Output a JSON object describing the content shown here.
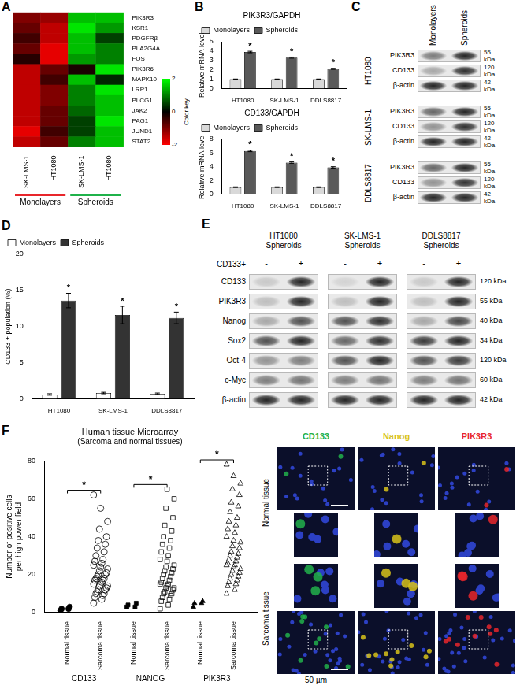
{
  "chart_data": [
    {
      "panel": "A",
      "type": "heatmap",
      "rows": [
        "PIK3R3",
        "KSR1",
        "PDGFRβ",
        "PLA2G4A",
        "FOS",
        "PIK3R6",
        "MAPK10",
        "LRP1",
        "PLCG1",
        "JAK2",
        "PAG1",
        "JUND1",
        "STAT2"
      ],
      "columns": [
        "SK-LMS-1",
        "HT1080",
        "SK-LMS-1",
        "HT1080"
      ],
      "column_groups": [
        "Monolayers",
        "Monolayers",
        "Spheroids",
        "Spheroids"
      ],
      "group_colors": {
        "Monolayers": "#e8262b",
        "Spheroids": "#1fb24a"
      },
      "cells": [
        [
          -1.0,
          -1.2,
          1.5,
          1.5
        ],
        [
          -0.8,
          -1.5,
          1.8,
          1.2
        ],
        [
          -0.5,
          -1.5,
          1.5,
          0.5
        ],
        [
          -0.8,
          -1.8,
          1.5,
          1.0
        ],
        [
          -0.3,
          -1.8,
          1.2,
          1.0
        ],
        [
          -1.5,
          -0.8,
          -0.2,
          1.8
        ],
        [
          -1.5,
          -0.5,
          1.5,
          0.3
        ],
        [
          -1.5,
          -1.0,
          1.0,
          1.8
        ],
        [
          -1.5,
          -1.0,
          1.0,
          1.5
        ],
        [
          -1.5,
          -0.8,
          0.8,
          1.5
        ],
        [
          -1.5,
          -0.8,
          0.5,
          1.8
        ],
        [
          -1.8,
          -0.5,
          0.5,
          1.5
        ],
        [
          -1.5,
          -0.8,
          1.0,
          1.5
        ]
      ],
      "colorbar": {
        "label": "Color key",
        "range": [
          -2,
          2
        ],
        "ticks": [
          -2,
          0,
          2
        ],
        "colors": [
          "#ff0000",
          "#000000",
          "#00ff00"
        ]
      }
    },
    {
      "panel": "B",
      "type": "bar",
      "title": "PIK3R3/GAPDH",
      "ylabel": "Relative mRNA level",
      "categories": [
        "HT1080",
        "SK-LMS-1",
        "DDLS8817"
      ],
      "series": [
        {
          "name": "Monolayers",
          "color": "#d9d9d9",
          "values": [
            1,
            1,
            1
          ],
          "errors": [
            0.02,
            0.02,
            0.02
          ]
        },
        {
          "name": "Spheroids",
          "color": "#595959",
          "values": [
            3.9,
            3.3,
            2.1
          ],
          "errors": [
            0.08,
            0.06,
            0.06
          ],
          "annotations": [
            "*",
            "*",
            "*"
          ]
        }
      ],
      "ylim": [
        0,
        5
      ],
      "yticks": [
        0,
        1,
        2,
        3,
        4,
        5
      ],
      "legend": "top-left",
      "grid": false
    },
    {
      "panel": "B",
      "type": "bar",
      "title": "CD133/GAPDH",
      "ylabel": "Relative mRNA level",
      "categories": [
        "HT1080",
        "SK-LMS-1",
        "DDLS8817"
      ],
      "series": [
        {
          "name": "Monolayers",
          "color": "#d9d9d9",
          "values": [
            1,
            1,
            1
          ],
          "errors": [
            0.05,
            0.05,
            0.05
          ]
        },
        {
          "name": "Spheroids",
          "color": "#595959",
          "values": [
            6.3,
            4.6,
            3.9
          ],
          "errors": [
            0.1,
            0.1,
            0.1
          ],
          "annotations": [
            "*",
            "*",
            "*"
          ]
        }
      ],
      "ylim": [
        0,
        8
      ],
      "yticks": [
        0,
        2,
        4,
        6,
        8
      ],
      "legend": "top-left",
      "grid": false
    },
    {
      "panel": "D",
      "type": "bar",
      "ylabel": "CD133 + population (%)",
      "categories": [
        "HT1080",
        "SK-LMS-1",
        "DDLS8817"
      ],
      "series": [
        {
          "name": "Monolayers",
          "color": "#ffffff",
          "values": [
            0.6,
            0.8,
            0.7
          ],
          "errors": [
            0.1,
            0.1,
            0.1
          ]
        },
        {
          "name": "Spheroids",
          "color": "#333333",
          "values": [
            13.6,
            11.6,
            11.2
          ],
          "errors": [
            1.0,
            1.2,
            0.8
          ],
          "annotations": [
            "*",
            "*",
            "*"
          ]
        }
      ],
      "ylim": [
        0,
        20
      ],
      "yticks": [
        0,
        5,
        10,
        15,
        20
      ],
      "legend": "top-left",
      "grid": false
    },
    {
      "panel": "F",
      "type": "scatter",
      "title": "Human tissue Microarray",
      "subtitle": "(Sarcoma and normal tissues)",
      "ylabel": [
        "Number of positive cells",
        "per high power field"
      ],
      "categories": [
        "Normal tissue",
        "Sarcoma tissue"
      ],
      "groups": [
        {
          "name": "CD133",
          "marker": "circle",
          "significance": "*",
          "values": [
            [
              1,
              2,
              2,
              3
            ],
            [
              5,
              7,
              8,
              9,
              10,
              10,
              11,
              12,
              12,
              13,
              14,
              14,
              15,
              15,
              16,
              17,
              17,
              18,
              18,
              19,
              20,
              20,
              21,
              22,
              23,
              24,
              25,
              26,
              27,
              28,
              30,
              32,
              34,
              36,
              38,
              40,
              44,
              48,
              55,
              62
            ]
          ]
        },
        {
          "name": "NANOG",
          "marker": "square",
          "significance": "*",
          "values": [
            [
              3,
              3,
              4,
              5
            ],
            [
              2,
              4,
              6,
              7,
              8,
              9,
              10,
              10,
              11,
              12,
              13,
              13,
              14,
              15,
              15,
              16,
              17,
              18,
              19,
              20,
              21,
              22,
              23,
              24,
              25,
              27,
              28,
              30,
              32,
              34,
              36,
              38,
              40,
              43,
              46,
              50,
              55,
              60,
              65
            ]
          ]
        },
        {
          "name": "PIK3R3",
          "marker": "triangle",
          "significance": "*",
          "values": [
            [
              3,
              5,
              5,
              6
            ],
            [
              10,
              12,
              14,
              15,
              16,
              17,
              18,
              19,
              20,
              21,
              22,
              23,
              24,
              25,
              25,
              26,
              27,
              28,
              29,
              30,
              31,
              32,
              34,
              35,
              37,
              38,
              40,
              42,
              44,
              46,
              48,
              50,
              53,
              56,
              58,
              62,
              65,
              68,
              72,
              78
            ]
          ]
        }
      ],
      "ylim": [
        0,
        80
      ],
      "yticks": [
        0,
        20,
        40,
        60,
        80
      ],
      "grid": false
    }
  ],
  "blots": [
    {
      "panel": "C",
      "columns": [
        "Monolayers",
        "Spheroids"
      ],
      "proteins": [
        "PIK3R3",
        "CD133",
        "β-actin"
      ],
      "sizes": [
        "55 kDa",
        "120 kDa",
        "42 kDa"
      ],
      "groups": [
        {
          "name": "HT1080",
          "intensity": [
            [
              0.5,
              0.9
            ],
            [
              0.3,
              0.85
            ],
            [
              0.9,
              0.9
            ]
          ]
        },
        {
          "name": "SK-LMS-1",
          "intensity": [
            [
              0.6,
              0.9
            ],
            [
              0.4,
              0.85
            ],
            [
              0.9,
              0.9
            ]
          ]
        },
        {
          "name": "DDLS8817",
          "intensity": [
            [
              0.6,
              0.9
            ],
            [
              0.4,
              0.85
            ],
            [
              0.9,
              0.9
            ]
          ]
        }
      ]
    },
    {
      "panel": "E",
      "header": "CD133+",
      "columns": [
        "-",
        "+"
      ],
      "proteins": [
        "CD133",
        "PIK3R3",
        "Nanog",
        "Sox2",
        "Oct-4",
        "c-Myc",
        "β-actin"
      ],
      "sizes": [
        "120 kDa",
        "55 kDa",
        "40 kDa",
        "34 kDa",
        "120 kDa",
        "60 kDa",
        "42 kDa"
      ],
      "groups": [
        {
          "name": "HT1080 Spheroids",
          "intensity": [
            [
              0.15,
              0.9
            ],
            [
              0.2,
              0.9
            ],
            [
              0.3,
              0.7
            ],
            [
              0.7,
              0.9
            ],
            [
              0.4,
              0.5
            ],
            [
              0.5,
              0.55
            ],
            [
              0.9,
              0.9
            ]
          ]
        },
        {
          "name": "SK-LMS-1 Spheroids",
          "intensity": [
            [
              0.1,
              0.9
            ],
            [
              0.2,
              0.9
            ],
            [
              0.7,
              0.85
            ],
            [
              0.6,
              0.85
            ],
            [
              0.7,
              0.9
            ],
            [
              0.5,
              0.55
            ],
            [
              0.9,
              0.9
            ]
          ]
        },
        {
          "name": "DDLS8817 Spheroids",
          "intensity": [
            [
              0.15,
              0.9
            ],
            [
              0.2,
              0.9
            ],
            [
              0.3,
              0.75
            ],
            [
              0.8,
              0.9
            ],
            [
              0.7,
              0.8
            ],
            [
              0.5,
              0.55
            ],
            [
              0.9,
              0.9
            ]
          ]
        }
      ]
    }
  ],
  "images": {
    "columns": [
      "CD133",
      "Nanog",
      "PIK3R3"
    ],
    "colors": [
      "#22b04b",
      "#d8c21a",
      "#e8262b"
    ],
    "rows": [
      "Normal tissue",
      "Sarcoma tissue"
    ],
    "scale_bar": "50 µm"
  }
}
